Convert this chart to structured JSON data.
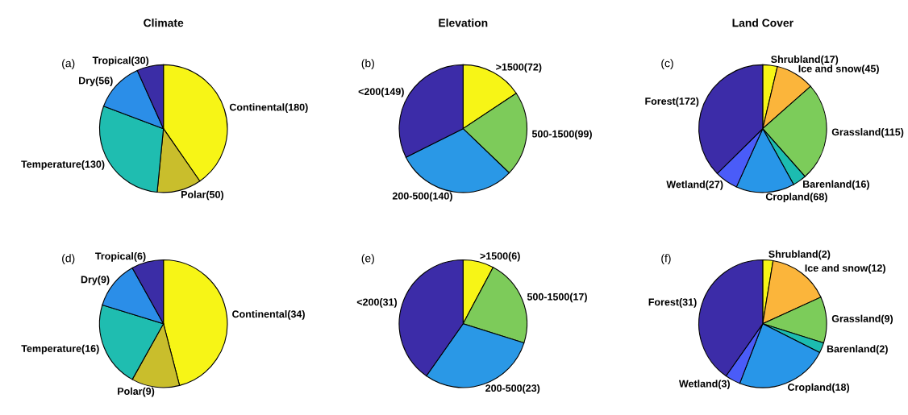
{
  "chart_data": [
    {
      "type": "pie",
      "title": "Climate",
      "annotations": [
        "(a)"
      ],
      "categories": [
        "Continental(180)",
        "Polar(50)",
        "Temperature(130)",
        "Dry(56)",
        "Tropical(30)"
      ],
      "values": [
        180,
        50,
        130,
        56,
        30
      ],
      "colors": [
        "#f7f516",
        "#c9be2c",
        "#1fbdb0",
        "#2b8ee8",
        "#3b2da6"
      ]
    },
    {
      "type": "pie",
      "title": "Elevation",
      "annotations": [
        "(b)"
      ],
      "categories": [
        ">1500(72)",
        "500-1500(99)",
        "200-500(140)",
        "<200(149)"
      ],
      "values": [
        72,
        99,
        140,
        149
      ],
      "colors": [
        "#f7f516",
        "#7dcb5a",
        "#2a98e6",
        "#3c2ca8"
      ]
    },
    {
      "type": "pie",
      "title": "Land Cover",
      "annotations": [
        "(c)"
      ],
      "categories": [
        "Shrubland(17)",
        "Ice and snow(45)",
        "Grassland(115)",
        "Barenland(16)",
        "Cropland(68)",
        "Wetland(27)",
        "Forest(172)"
      ],
      "values": [
        17,
        45,
        115,
        16,
        68,
        27,
        172
      ],
      "colors": [
        "#f7f516",
        "#fbb53b",
        "#7ccc5a",
        "#1cbcb0",
        "#2896e8",
        "#4a5cf8",
        "#3c2ca8"
      ]
    },
    {
      "type": "pie",
      "annotations": [
        "(d)"
      ],
      "categories": [
        "Continental(34)",
        "Polar(9)",
        "Temperature(16)",
        "Dry(9)",
        "Tropical(6)"
      ],
      "values": [
        34,
        9,
        16,
        9,
        6
      ],
      "colors": [
        "#f7f516",
        "#c9be2c",
        "#1fbdb0",
        "#2b8ee8",
        "#3b2da6"
      ]
    },
    {
      "type": "pie",
      "annotations": [
        "(e)"
      ],
      "categories": [
        ">1500(6)",
        "500-1500(17)",
        "200-500(23)",
        "<200(31)"
      ],
      "values": [
        6,
        17,
        23,
        31
      ],
      "colors": [
        "#f7f516",
        "#7dcb5a",
        "#2a98e6",
        "#3c2ca8"
      ]
    },
    {
      "type": "pie",
      "annotations": [
        "(f)"
      ],
      "categories": [
        "Shrubland(2)",
        "Ice and snow(12)",
        "Grassland(9)",
        "Barenland(2)",
        "Cropland(18)",
        "Wetland(3)",
        "Forest(31)"
      ],
      "values": [
        2,
        12,
        9,
        2,
        18,
        3,
        31
      ],
      "colors": [
        "#f7f516",
        "#fbb53b",
        "#7ccc5a",
        "#1cbcb0",
        "#2896e8",
        "#4a5cf8",
        "#3c2ca8"
      ]
    }
  ]
}
